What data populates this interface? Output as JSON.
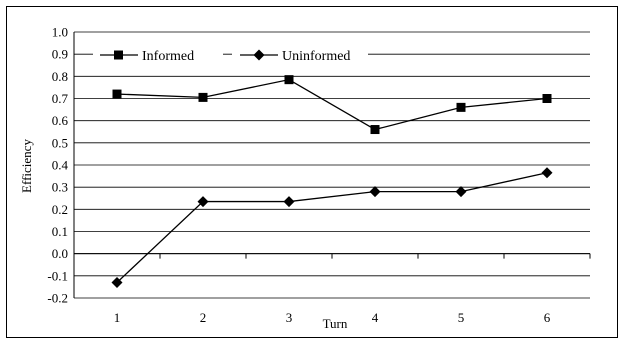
{
  "chart_data": {
    "type": "line",
    "title": "",
    "xlabel": "Turn",
    "ylabel": "Efficiency",
    "categories": [
      "1",
      "2",
      "3",
      "4",
      "5",
      "6"
    ],
    "ylim": [
      -0.2,
      1.0
    ],
    "yticks": [
      "1.0",
      "0.9",
      "0.8",
      "0.7",
      "0.6",
      "0.5",
      "0.4",
      "0.3",
      "0.2",
      "0.1",
      "0.0",
      "-0.1",
      "-0.2"
    ],
    "grid": true,
    "legend": "top-left",
    "series": [
      {
        "name": "Informed",
        "marker": "square",
        "values": [
          0.72,
          0.705,
          0.785,
          0.56,
          0.66,
          0.7
        ]
      },
      {
        "name": "Uninformed",
        "marker": "diamond",
        "values": [
          -0.13,
          0.235,
          0.235,
          0.28,
          0.28,
          0.365
        ]
      }
    ]
  }
}
